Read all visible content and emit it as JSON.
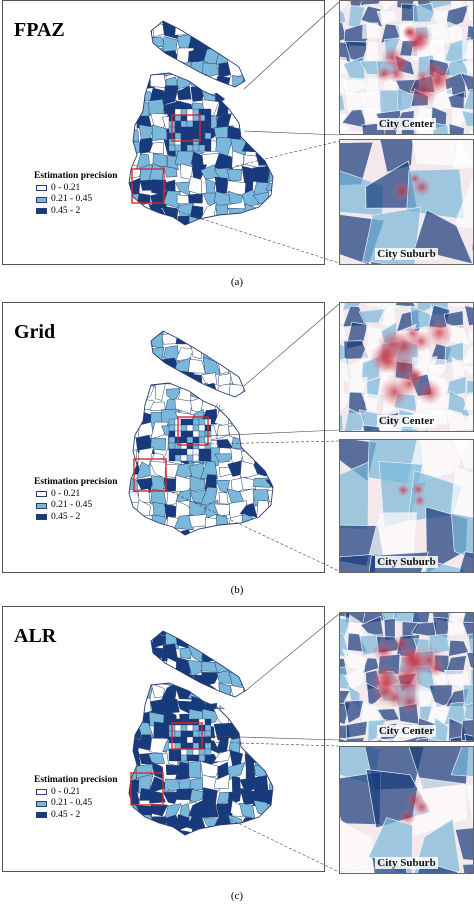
{
  "colors": {
    "class_low": "#ffffff",
    "class_mid": "#79b8da",
    "class_high": "#173a7c",
    "border": "#2a3d6e",
    "roi": "#d42a2a"
  },
  "legend": {
    "title": "Estimation precision",
    "items": [
      {
        "label": "0 - 0.21",
        "color": "#ffffff"
      },
      {
        "label": "0.21 - 0.45",
        "color": "#79b8da"
      },
      {
        "label": "0.45 - 2",
        "color": "#173a7c"
      }
    ]
  },
  "panels": [
    {
      "title": "FPAZ",
      "caption": "(a)",
      "inset_center_label": "City Center",
      "inset_suburb_label": "City Suburb",
      "dominant": "mixed"
    },
    {
      "title": "Grid",
      "caption": "(b)",
      "inset_center_label": "City Center",
      "inset_suburb_label": "City Suburb",
      "dominant": "low"
    },
    {
      "title": "ALR",
      "caption": "(c)",
      "inset_center_label": "City Center",
      "inset_suburb_label": "City Suburb",
      "dominant": "high"
    }
  ]
}
